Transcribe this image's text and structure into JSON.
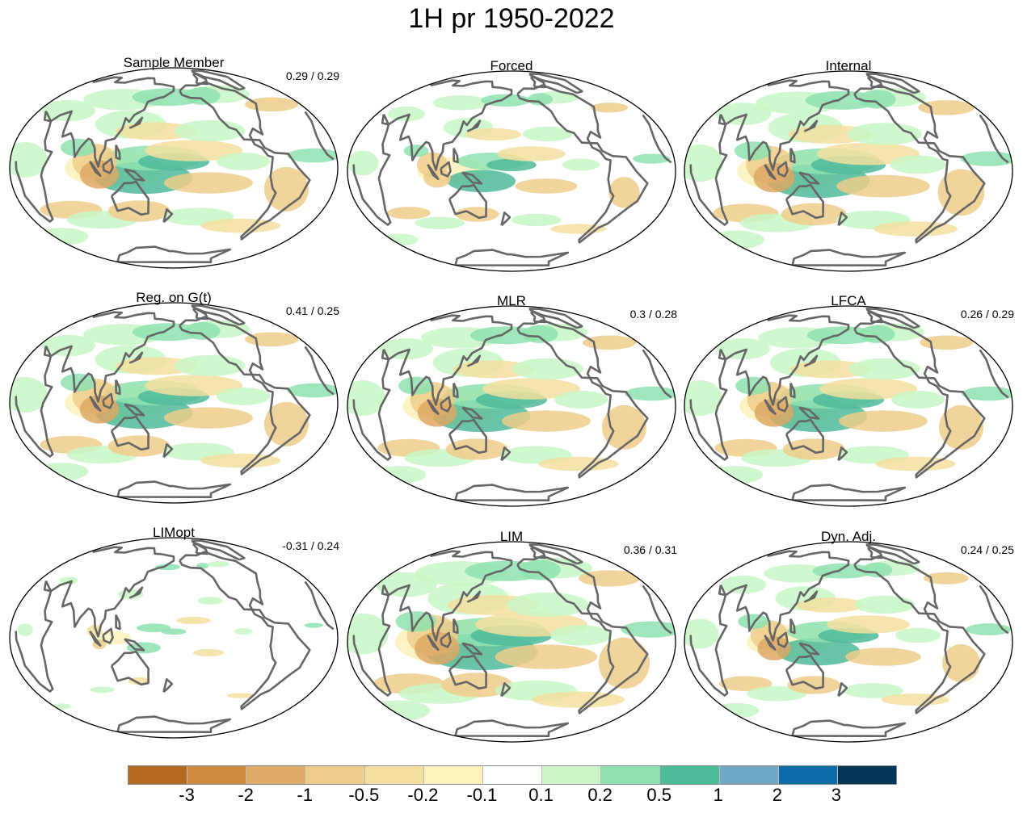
{
  "title": "1H pr 1950-2022",
  "panels": [
    {
      "title": "Sample Member",
      "stat": "0.29 / 0.29",
      "pattern": 1.0,
      "green": 1.0,
      "brown": 1.0
    },
    {
      "title": "Forced",
      "stat": "",
      "pattern": 0.7,
      "green": 0.9,
      "brown": 0.8
    },
    {
      "title": "Internal",
      "stat": "",
      "pattern": 1.05,
      "green": 1.0,
      "brown": 1.1
    },
    {
      "title": "Reg. on G(t)",
      "stat": "0.41 / 0.25",
      "pattern": 1.0,
      "green": 1.0,
      "brown": 1.0
    },
    {
      "title": "MLR",
      "stat": "0.3 / 0.28",
      "pattern": 1.0,
      "green": 1.0,
      "brown": 1.0
    },
    {
      "title": "LFCA",
      "stat": "0.26 / 0.29",
      "pattern": 1.0,
      "green": 0.95,
      "brown": 1.0
    },
    {
      "title": "LIMopt",
      "stat": "-0.31 / 0.24",
      "pattern": 0.35,
      "green": 0.5,
      "brown": 0.6
    },
    {
      "title": "LIM",
      "stat": "0.36 / 0.31",
      "pattern": 1.15,
      "green": 1.1,
      "brown": 1.1
    },
    {
      "title": "Dyn. Adj.",
      "stat": "0.24 / 0.25",
      "pattern": 0.85,
      "green": 0.8,
      "brown": 1.0
    }
  ],
  "colorbar": {
    "colors": [
      "#b5691f",
      "#cd8a3e",
      "#dea865",
      "#efcc8b",
      "#f3df9f",
      "#fdf2bb",
      "#ffffff",
      "#c8f7c5",
      "#8fe2b0",
      "#4fba9a",
      "#6fa7c6",
      "#0b6aa8",
      "#033654"
    ],
    "labels": [
      "-3",
      "-2",
      "-1",
      "-0.5",
      "-0.2",
      "-0.1",
      "0.1",
      "0.2",
      "0.5",
      "1",
      "2",
      "3"
    ]
  }
}
